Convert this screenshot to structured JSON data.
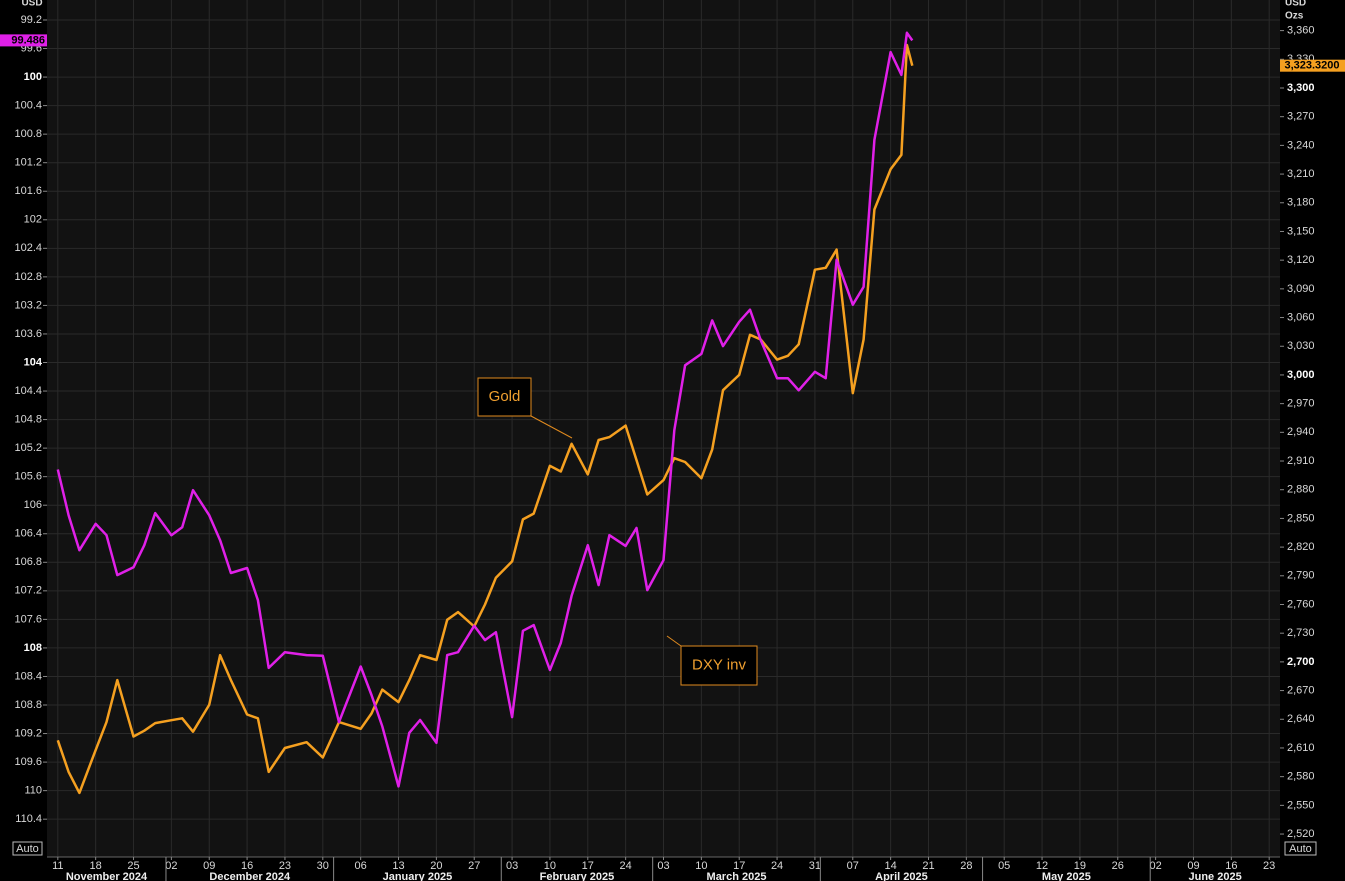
{
  "chart_data": {
    "type": "line",
    "y_label": "USD",
    "y2_label": [
      "USD",
      "Ozs"
    ],
    "buttons": [
      "Auto",
      "Auto"
    ],
    "x": [
      "2024-11-11",
      "2024-11-13",
      "2024-11-15",
      "2024-11-18",
      "2024-11-20",
      "2024-11-22",
      "2024-11-25",
      "2024-11-27",
      "2024-11-29",
      "2024-12-02",
      "2024-12-04",
      "2024-12-06",
      "2024-12-09",
      "2024-12-11",
      "2024-12-13",
      "2024-12-16",
      "2024-12-18",
      "2024-12-20",
      "2024-12-23",
      "2024-12-27",
      "2024-12-30",
      "2025-01-02",
      "2025-01-06",
      "2025-01-08",
      "2025-01-10",
      "2025-01-13",
      "2025-01-15",
      "2025-01-17",
      "2025-01-20",
      "2025-01-22",
      "2025-01-24",
      "2025-01-27",
      "2025-01-29",
      "2025-01-31",
      "2025-02-03",
      "2025-02-05",
      "2025-02-07",
      "2025-02-10",
      "2025-02-12",
      "2025-02-14",
      "2025-02-17",
      "2025-02-19",
      "2025-02-21",
      "2025-02-24",
      "2025-02-26",
      "2025-02-28",
      "2025-03-03",
      "2025-03-05",
      "2025-03-07",
      "2025-03-10",
      "2025-03-12",
      "2025-03-14",
      "2025-03-17",
      "2025-03-19",
      "2025-03-21",
      "2025-03-24",
      "2025-03-26",
      "2025-03-28",
      "2025-03-31",
      "2025-04-02",
      "2025-04-04",
      "2025-04-07",
      "2025-04-09",
      "2025-04-11",
      "2025-04-14",
      "2025-04-16",
      "2025-04-17",
      "2025-04-18"
    ],
    "series": [
      {
        "name": "Gold",
        "color": "#f5a020",
        "axis": "y2",
        "last_value_label": "3,323.3200",
        "values": [
          2618,
          2585,
          2563,
          2608,
          2637,
          2681,
          2622,
          2628,
          2636,
          2639,
          2641,
          2627,
          2655,
          2707,
          2681,
          2645,
          2641,
          2585,
          2610,
          2616,
          2600,
          2637,
          2630,
          2646,
          2671,
          2658,
          2681,
          2707,
          2702,
          2744,
          2752,
          2737,
          2760,
          2788,
          2805,
          2849,
          2855,
          2905,
          2899,
          2928,
          2896,
          2932,
          2935,
          2947,
          2911,
          2875,
          2890,
          2913,
          2909,
          2892,
          2922,
          2984,
          3000,
          3042,
          3037,
          3016,
          3020,
          3032,
          3110,
          3112,
          3131,
          2981,
          3037,
          3173,
          3215,
          3230,
          3345,
          3323.32
        ]
      },
      {
        "name": "DXY inv",
        "color": "#e020e8",
        "axis": "y",
        "last_value_label": "99.486",
        "values": [
          105.5,
          106.14,
          106.63,
          106.26,
          106.42,
          106.98,
          106.87,
          106.56,
          106.11,
          106.42,
          106.31,
          105.79,
          106.14,
          106.49,
          106.95,
          106.88,
          107.33,
          108.28,
          108.06,
          108.1,
          108.11,
          109.04,
          108.26,
          108.66,
          109.1,
          109.94,
          109.19,
          109.01,
          109.33,
          108.1,
          108.06,
          107.69,
          107.89,
          107.78,
          108.97,
          107.76,
          107.68,
          108.31,
          107.93,
          107.27,
          106.56,
          107.12,
          106.42,
          106.57,
          106.32,
          107.19,
          106.77,
          104.95,
          104.04,
          103.88,
          103.41,
          103.77,
          103.43,
          103.26,
          103.69,
          104.22,
          104.22,
          104.39,
          104.13,
          104.22,
          102.56,
          103.19,
          102.94,
          100.88,
          99.65,
          99.97,
          99.38,
          99.486
        ]
      }
    ],
    "xlim": [
      "2024-11-09",
      "2025-06-25"
    ],
    "xticks": [
      {
        "value": "2024-11-11",
        "label": "11"
      },
      {
        "value": "2024-11-18",
        "label": "18"
      },
      {
        "value": "2024-11-25",
        "label": "25"
      },
      {
        "value": "2024-12-02",
        "label": "02"
      },
      {
        "value": "2024-12-09",
        "label": "09"
      },
      {
        "value": "2024-12-16",
        "label": "16"
      },
      {
        "value": "2024-12-23",
        "label": "23"
      },
      {
        "value": "2024-12-30",
        "label": "30"
      },
      {
        "value": "2025-01-06",
        "label": "06"
      },
      {
        "value": "2025-01-13",
        "label": "13"
      },
      {
        "value": "2025-01-20",
        "label": "20"
      },
      {
        "value": "2025-01-27",
        "label": "27"
      },
      {
        "value": "2025-02-03",
        "label": "03"
      },
      {
        "value": "2025-02-10",
        "label": "10"
      },
      {
        "value": "2025-02-17",
        "label": "17"
      },
      {
        "value": "2025-02-24",
        "label": "24"
      },
      {
        "value": "2025-03-03",
        "label": "03"
      },
      {
        "value": "2025-03-10",
        "label": "10"
      },
      {
        "value": "2025-03-17",
        "label": "17"
      },
      {
        "value": "2025-03-24",
        "label": "24"
      },
      {
        "value": "2025-03-31",
        "label": "31"
      },
      {
        "value": "2025-04-07",
        "label": "07"
      },
      {
        "value": "2025-04-14",
        "label": "14"
      },
      {
        "value": "2025-04-21",
        "label": "21"
      },
      {
        "value": "2025-04-28",
        "label": "28"
      },
      {
        "value": "2025-05-05",
        "label": "05"
      },
      {
        "value": "2025-05-12",
        "label": "12"
      },
      {
        "value": "2025-05-19",
        "label": "19"
      },
      {
        "value": "2025-05-26",
        "label": "26"
      },
      {
        "value": "2025-06-02",
        "label": "02"
      },
      {
        "value": "2025-06-09",
        "label": "09"
      },
      {
        "value": "2025-06-16",
        "label": "16"
      },
      {
        "value": "2025-06-23",
        "label": "23"
      }
    ],
    "months": [
      {
        "value": "2024-11",
        "label": "November 2024"
      },
      {
        "value": "2024-12",
        "label": "December 2024"
      },
      {
        "value": "2025-01",
        "label": "January 2025"
      },
      {
        "value": "2025-02",
        "label": "February 2025"
      },
      {
        "value": "2025-03",
        "label": "March 2025"
      },
      {
        "value": "2025-04",
        "label": "April 2025"
      },
      {
        "value": "2025-05",
        "label": "May 2025"
      },
      {
        "value": "2025-06",
        "label": "June 2025"
      }
    ],
    "ylim": [
      110.93,
      98.92
    ],
    "yticks": [
      99.2,
      99.6,
      100,
      100.4,
      100.8,
      101.2,
      101.6,
      102,
      102.4,
      102.8,
      103.2,
      103.6,
      104,
      104.4,
      104.8,
      105.2,
      105.6,
      106,
      106.4,
      106.8,
      107.2,
      107.6,
      108,
      108.4,
      108.8,
      109.2,
      109.6,
      110,
      110.4
    ],
    "y2lim": [
      2496,
      3392
    ],
    "y2ticks": [
      {
        "value": 2520,
        "label": "2,520"
      },
      {
        "value": 2550,
        "label": "2,550"
      },
      {
        "value": 2580,
        "label": "2,580"
      },
      {
        "value": 2610,
        "label": "2,610"
      },
      {
        "value": 2640,
        "label": "2,640"
      },
      {
        "value": 2670,
        "label": "2,670"
      },
      {
        "value": 2700,
        "label": "2,700"
      },
      {
        "value": 2730,
        "label": "2,730"
      },
      {
        "value": 2760,
        "label": "2,760"
      },
      {
        "value": 2790,
        "label": "2,790"
      },
      {
        "value": 2820,
        "label": "2,820"
      },
      {
        "value": 2850,
        "label": "2,850"
      },
      {
        "value": 2880,
        "label": "2,880"
      },
      {
        "value": 2910,
        "label": "2,910"
      },
      {
        "value": 2940,
        "label": "2,940"
      },
      {
        "value": 2970,
        "label": "2,970"
      },
      {
        "value": 3000,
        "label": "3,000"
      },
      {
        "value": 3030,
        "label": "3,030"
      },
      {
        "value": 3060,
        "label": "3,060"
      },
      {
        "value": 3090,
        "label": "3,090"
      },
      {
        "value": 3120,
        "label": "3,120"
      },
      {
        "value": 3150,
        "label": "3,150"
      },
      {
        "value": 3180,
        "label": "3,180"
      },
      {
        "value": 3210,
        "label": "3,210"
      },
      {
        "value": 3240,
        "label": "3,240"
      },
      {
        "value": 3270,
        "label": "3,270"
      },
      {
        "value": 3300,
        "label": "3,300"
      },
      {
        "value": 3330,
        "label": "3,330"
      },
      {
        "value": 3360,
        "label": "3,360"
      }
    ],
    "grid": true
  }
}
